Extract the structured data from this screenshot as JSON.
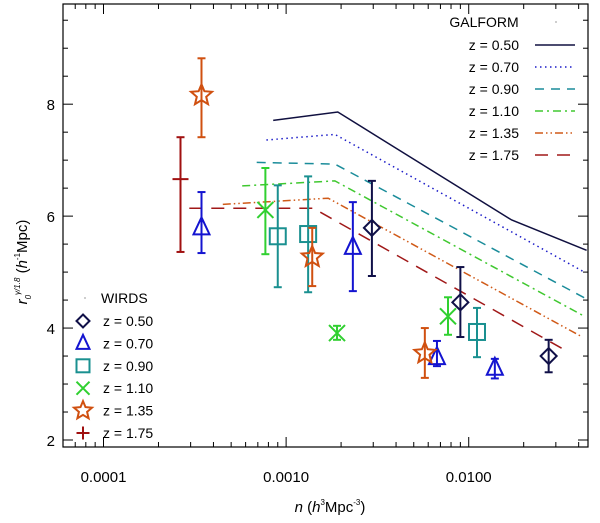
{
  "chart_data": {
    "type": "line",
    "title": "",
    "xlabel": {
      "var": "n",
      "open": " (",
      "unit_h": "h",
      "unit_h_exp": "3",
      "unit_mid": "Mpc",
      "unit_exp": "-3",
      "close": ")"
    },
    "ylabel": {
      "var": "r",
      "sub": "0",
      "sup": "γ/1.8",
      "open": " (",
      "unit_h": "h",
      "unit_h_exp": "-1",
      "unit_mid": "Mpc",
      "close": ")"
    },
    "xscale": "log",
    "xlim": [
      6e-05,
      0.045
    ],
    "ylim": [
      1.875,
      9.79
    ],
    "xticks": [
      {
        "value": 0.0001,
        "label": "0.0001"
      },
      {
        "value": 0.001,
        "label": "0.0010"
      },
      {
        "value": 0.01,
        "label": "0.0100"
      }
    ],
    "yticks": [
      {
        "value": 2,
        "label": "2"
      },
      {
        "value": 4,
        "label": "4"
      },
      {
        "value": 6,
        "label": "6"
      },
      {
        "value": 8,
        "label": "8"
      }
    ],
    "legends": [
      {
        "title": "GALFORM",
        "placement": "top-right"
      },
      {
        "title": "WIRDS",
        "placement": "bottom-left"
      }
    ],
    "model_series": [
      {
        "name": "z = 0.50",
        "color": "#101040",
        "style": "solid",
        "x": [
          0.00085,
          0.00192,
          0.0172,
          0.0442
        ],
        "y": [
          7.71,
          7.86,
          5.93,
          5.39
        ]
      },
      {
        "name": "z = 0.70",
        "color": "#1a1ac8",
        "style": "dotted",
        "x": [
          0.00078,
          0.00185,
          0.043
        ],
        "y": [
          7.36,
          7.46,
          5.0
        ]
      },
      {
        "name": "z = 0.90",
        "color": "#1a8c9a",
        "style": "dashed",
        "x": [
          0.00069,
          0.00185,
          0.043
        ],
        "y": [
          6.96,
          6.93,
          4.54
        ]
      },
      {
        "name": "z = 1.10",
        "color": "#40c830",
        "style": "dash-dot",
        "x": [
          0.000575,
          0.00185,
          0.043
        ],
        "y": [
          6.54,
          6.63,
          4.21
        ]
      },
      {
        "name": "z = 1.35",
        "color": "#d05a18",
        "style": "dash-dot-dot",
        "x": [
          0.00045,
          0.0017,
          0.0419
        ],
        "y": [
          6.21,
          6.32,
          3.84
        ]
      },
      {
        "name": "z = 1.75",
        "color": "#a01818",
        "style": "long-dash",
        "x": [
          0.000295,
          0.00141,
          0.0335
        ],
        "y": [
          6.14,
          6.14,
          3.61
        ]
      }
    ],
    "data_series": [
      {
        "name": "z = 0.50",
        "color": "#101048",
        "marker": "diamond",
        "points": [
          {
            "x": 0.00295,
            "y": 5.79,
            "ylo": 4.93,
            "yhi": 6.63
          },
          {
            "x": 0.009,
            "y": 4.46,
            "ylo": 3.84,
            "yhi": 5.09
          },
          {
            "x": 0.0274,
            "y": 3.5,
            "ylo": 3.21,
            "yhi": 3.79
          }
        ]
      },
      {
        "name": "z = 0.70",
        "color": "#1414d0",
        "marker": "triangle",
        "points": [
          {
            "x": 0.000344,
            "y": 5.8,
            "ylo": 5.34,
            "yhi": 6.43
          },
          {
            "x": 0.00232,
            "y": 5.45,
            "ylo": 4.66,
            "yhi": 6.25
          },
          {
            "x": 0.0067,
            "y": 3.48,
            "ylo": 3.32,
            "yhi": 3.77
          },
          {
            "x": 0.0139,
            "y": 3.29,
            "ylo": 3.1,
            "yhi": 3.45
          }
        ]
      },
      {
        "name": "z = 0.90",
        "color": "#1a9090",
        "marker": "square",
        "points": [
          {
            "x": 0.0009,
            "y": 5.64,
            "ylo": 4.73,
            "yhi": 6.55
          },
          {
            "x": 0.00132,
            "y": 5.68,
            "ylo": 4.64,
            "yhi": 6.71
          },
          {
            "x": 0.0111,
            "y": 3.93,
            "ylo": 3.48,
            "yhi": 4.36
          }
        ]
      },
      {
        "name": "z = 1.10",
        "color": "#30d030",
        "marker": "x",
        "points": [
          {
            "x": 0.00077,
            "y": 6.11,
            "ylo": 5.32,
            "yhi": 6.86
          },
          {
            "x": 0.0019,
            "y": 3.91,
            "ylo": 3.79,
            "yhi": 4.04
          },
          {
            "x": 0.0077,
            "y": 4.21,
            "ylo": 3.88,
            "yhi": 4.55
          }
        ]
      },
      {
        "name": "z = 1.35",
        "color": "#d05010",
        "marker": "star",
        "points": [
          {
            "x": 0.000344,
            "y": 8.16,
            "ylo": 7.41,
            "yhi": 8.82
          },
          {
            "x": 0.00139,
            "y": 5.27,
            "ylo": 4.75,
            "yhi": 5.79
          },
          {
            "x": 0.00575,
            "y": 3.55,
            "ylo": 3.11,
            "yhi": 4.0
          }
        ]
      },
      {
        "name": "z = 1.75",
        "color": "#a01010",
        "marker": "plus",
        "points": [
          {
            "x": 0.000264,
            "y": 6.66,
            "ylo": 5.36,
            "yhi": 7.41
          }
        ]
      }
    ]
  }
}
